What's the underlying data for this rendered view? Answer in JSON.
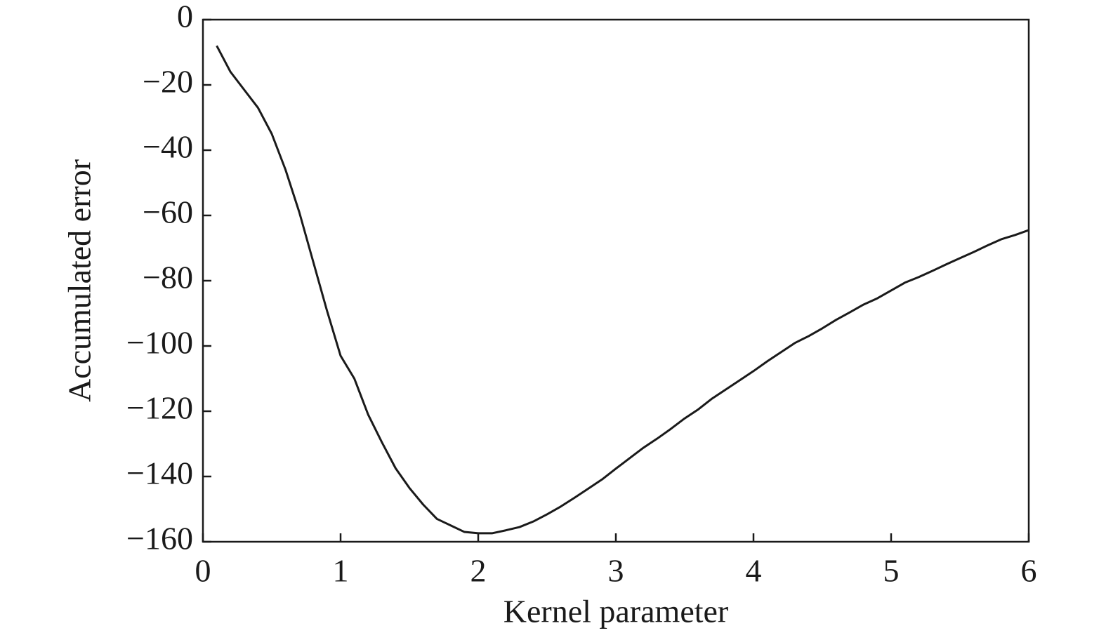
{
  "chart_data": {
    "type": "line",
    "xlabel": "Kernel parameter",
    "ylabel": "Accumulated error",
    "x": [
      0.1,
      0.2,
      0.3,
      0.4,
      0.5,
      0.6,
      0.7,
      0.8,
      0.9,
      1.0,
      1.1,
      1.2,
      1.3,
      1.4,
      1.5,
      1.6,
      1.7,
      1.8,
      1.9,
      2.0,
      2.1,
      2.2,
      2.3,
      2.4,
      2.5,
      2.6,
      2.7,
      2.8,
      2.9,
      3.0,
      3.1,
      3.2,
      3.3,
      3.4,
      3.5,
      3.6,
      3.7,
      3.8,
      3.9,
      4.0,
      4.1,
      4.2,
      4.3,
      4.4,
      4.5,
      4.6,
      4.7,
      4.8,
      4.9,
      5.0,
      5.1,
      5.2,
      5.3,
      5.4,
      5.5,
      5.6,
      5.7,
      5.8,
      5.9,
      6.0
    ],
    "values": [
      -8,
      -16,
      -21.5,
      -27,
      -35,
      -46,
      -59,
      -74,
      -89,
      -103,
      -110,
      -121,
      -129.5,
      -137.5,
      -143.5,
      -148.6,
      -153,
      -155,
      -157,
      -157.4,
      -157.4,
      -156.5,
      -155.5,
      -153.8,
      -151.6,
      -149.2,
      -146.5,
      -143.7,
      -140.9,
      -137.6,
      -134.4,
      -131.2,
      -128.4,
      -125.4,
      -122.2,
      -119.4,
      -116.1,
      -113.3,
      -110.5,
      -107.7,
      -104.7,
      -101.9,
      -99.1,
      -97,
      -94.6,
      -92,
      -89.7,
      -87.3,
      -85.4,
      -83,
      -80.6,
      -78.9,
      -77,
      -75,
      -73.1,
      -71.2,
      -69.2,
      -67.3,
      -66,
      -64.5
    ],
    "color": "#1a1a1a",
    "xlim": [
      0,
      6
    ],
    "xticks": [
      0,
      1,
      2,
      3,
      4,
      5,
      6
    ],
    "ylim": [
      -160,
      0
    ],
    "yticks": [
      0,
      {
        "value": -20,
        "label": "−20"
      },
      {
        "value": -40,
        "label": "−40"
      },
      {
        "value": -60,
        "label": "−60"
      },
      {
        "value": -80,
        "label": "−80"
      },
      {
        "value": -100,
        "label": "−100"
      },
      {
        "value": -120,
        "label": "−120"
      },
      {
        "value": -140,
        "label": "−140"
      },
      {
        "value": -160,
        "label": "−160"
      }
    ],
    "grid": false
  }
}
